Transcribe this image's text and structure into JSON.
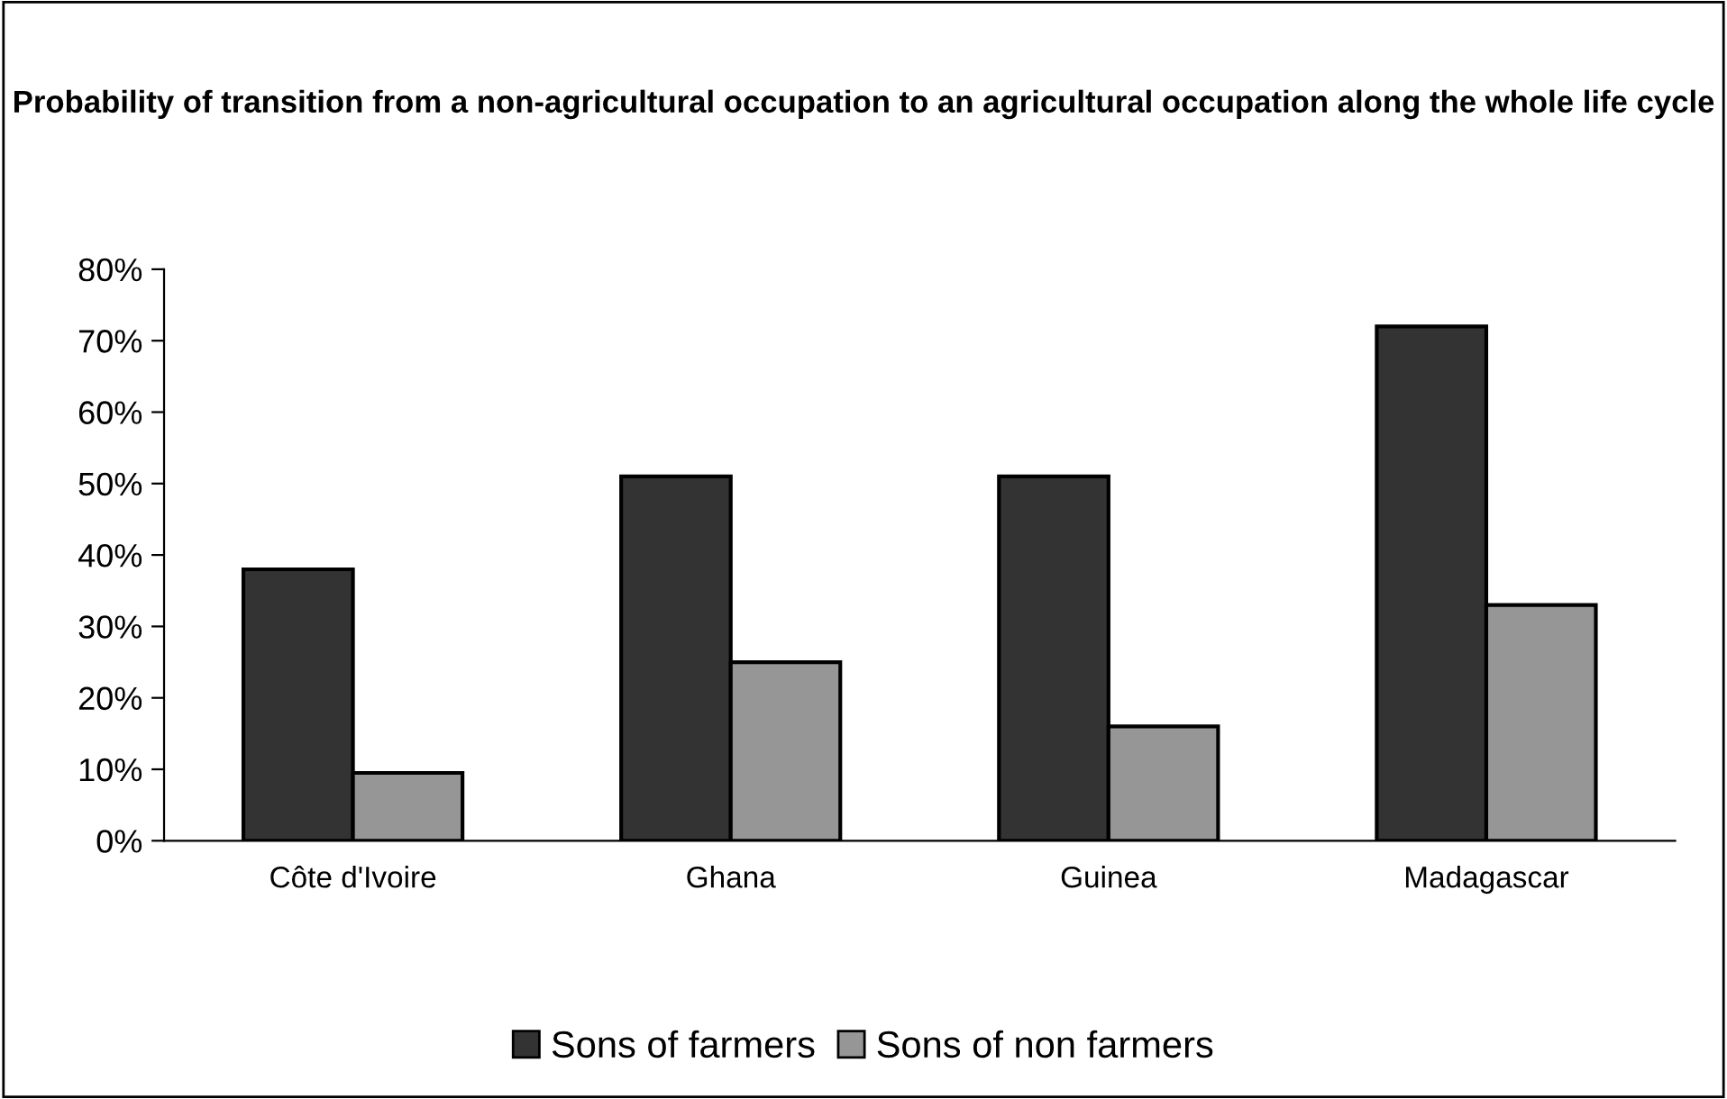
{
  "chart_data": {
    "type": "bar",
    "title": "Probability of transition from a non-agricultural occupation to an agricultural occupation along the whole life cycle",
    "categories": [
      "Côte d'Ivoire",
      "Ghana",
      "Guinea",
      "Madagascar"
    ],
    "series": [
      {
        "name": "Sons of farmers",
        "color": "#333333",
        "values": [
          38,
          51,
          51,
          72
        ]
      },
      {
        "name": "Sons of non farmers",
        "color": "#969696",
        "values": [
          9.5,
          25,
          16,
          33
        ]
      }
    ],
    "ylim": [
      0,
      80
    ],
    "yticks": [
      {
        "value": 0,
        "label": "0%"
      },
      {
        "value": 10,
        "label": "10%"
      },
      {
        "value": 20,
        "label": "20%"
      },
      {
        "value": 30,
        "label": "30%"
      },
      {
        "value": 40,
        "label": "40%"
      },
      {
        "value": 50,
        "label": "50%"
      },
      {
        "value": 60,
        "label": "60%"
      },
      {
        "value": 70,
        "label": "70%"
      },
      {
        "value": 80,
        "label": "80%"
      }
    ],
    "grid": false,
    "legend": "bottom"
  }
}
